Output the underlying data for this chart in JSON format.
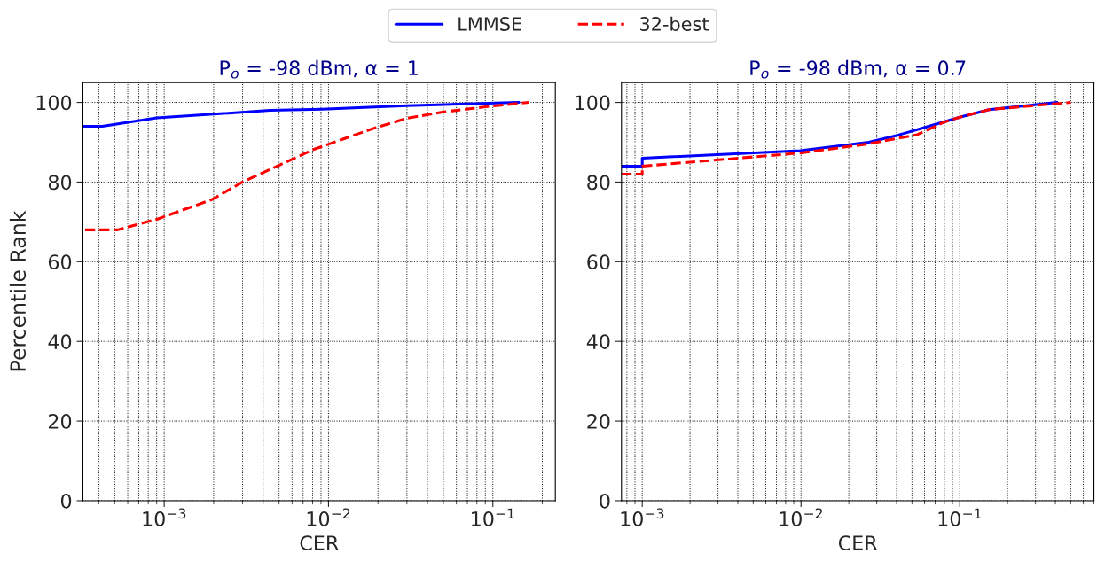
{
  "chart_data": [
    {
      "type": "line",
      "title": "P$_{o}$ = -98 dBm, α = 1",
      "xlabel": "CER",
      "ylabel": "Percentile Rank",
      "log": "x",
      "grid": true,
      "legend": "top",
      "xlim": [
        0.00032,
        0.24
      ],
      "xticks": [
        {
          "value": 0.001,
          "label": "10$^{−3}$"
        },
        {
          "value": 0.01,
          "label": "10$^{−2}$"
        },
        {
          "value": 0.1,
          "label": "10$^{−1}$"
        }
      ],
      "ylim": [
        0,
        105
      ],
      "yticks": [
        0,
        20,
        40,
        60,
        80,
        100
      ],
      "series": [
        {
          "name": "LMMSE",
          "color": "#0000ff",
          "line_style": "solid",
          "x": [
            0.00032,
            0.00042,
            0.0009,
            0.0044,
            0.0091,
            0.03,
            0.144
          ],
          "values": [
            94,
            94,
            96.1,
            98,
            98.3,
            99.2,
            100
          ]
        },
        {
          "name": "32-best",
          "color": "#ff0000",
          "line_style": "dashed",
          "x": [
            0.00033,
            0.00052,
            0.00091,
            0.00195,
            0.003,
            0.008,
            0.0195,
            0.03,
            0.05,
            0.095,
            0.165
          ],
          "values": [
            68,
            68,
            70.7,
            75.6,
            80,
            88.1,
            93.7,
            96,
            97.6,
            99,
            100
          ]
        }
      ]
    },
    {
      "type": "line",
      "title": "P$_{o}$ = -98 dBm, α = 0.7",
      "xlabel": "CER",
      "log": "x",
      "grid": true,
      "xlim": [
        0.00074,
        0.7
      ],
      "xticks": [
        {
          "value": 0.001,
          "label": "10$^{−3}$"
        },
        {
          "value": 0.01,
          "label": "10$^{−2}$"
        },
        {
          "value": 0.1,
          "label": "10$^{−1}$"
        }
      ],
      "ylim": [
        0,
        105
      ],
      "yticks": [
        0,
        20,
        40,
        60,
        80,
        100
      ],
      "series": [
        {
          "color": "#0000ff",
          "line_style": "solid",
          "x": [
            0.00074,
            0.001,
            0.001,
            0.0099,
            0.0267,
            0.041,
            0.061,
            0.1,
            0.153,
            0.41
          ],
          "values": [
            84,
            84,
            86,
            87.9,
            90,
            91.8,
            93.8,
            96.3,
            98.2,
            100
          ]
        },
        {
          "color": "#ff0000",
          "line_style": "dashed",
          "x": [
            0.00074,
            0.001,
            0.001,
            0.0099,
            0.0267,
            0.054,
            0.079,
            0.1,
            0.153,
            0.5
          ],
          "values": [
            82,
            82,
            84,
            87.3,
            89.6,
            91.9,
            95,
            96.3,
            98.2,
            100
          ]
        }
      ]
    }
  ]
}
